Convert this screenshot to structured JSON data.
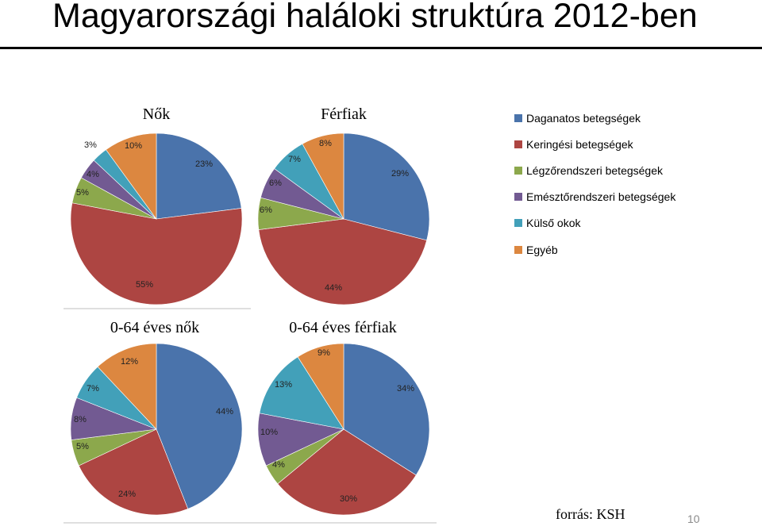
{
  "slide": {
    "title": "Magyarországi haláloki struktúra 2012-ben",
    "source": "forrás: KSH",
    "page_number": "10"
  },
  "legend": [
    {
      "label": "Daganatos betegségek",
      "color": "#4a73ab"
    },
    {
      "label": "Keringési betegségek",
      "color": "#ad4542"
    },
    {
      "label": "Légzőrendszeri betegségek",
      "color": "#8ca84c"
    },
    {
      "label": "Emésztőrendszeri betegségek",
      "color": "#725a92"
    },
    {
      "label": "Külső okok",
      "color": "#42a0b9"
    },
    {
      "label": "Egyéb",
      "color": "#dc8740"
    }
  ],
  "chart_data": [
    {
      "type": "pie",
      "title": "Nők",
      "categories": [
        "Daganatos betegségek",
        "Keringési betegségek",
        "Légzőrendszeri betegségek",
        "Emésztőrendszeri betegségek",
        "Külső okok",
        "Egyéb"
      ],
      "values": [
        23,
        55,
        5,
        4,
        3,
        10
      ],
      "labels": [
        "23%",
        "55%",
        "5%",
        "4%",
        "3%",
        "10%"
      ]
    },
    {
      "type": "pie",
      "title": "Férfiak",
      "categories": [
        "Daganatos betegségek",
        "Keringési betegségek",
        "Légzőrendszeri betegségek",
        "Emésztőrendszeri betegségek",
        "Külső okok",
        "Egyéb"
      ],
      "values": [
        29,
        44,
        6,
        6,
        7,
        8
      ],
      "labels": [
        "29%",
        "44%",
        "6%",
        "6%",
        "7%",
        "8%"
      ]
    },
    {
      "type": "pie",
      "title": "0-64 éves nők",
      "categories": [
        "Daganatos betegségek",
        "Keringési betegségek",
        "Légzőrendszeri betegségek",
        "Emésztőrendszeri betegségek",
        "Külső okok",
        "Egyéb"
      ],
      "values": [
        44,
        24,
        5,
        8,
        7,
        12
      ],
      "labels": [
        "44%",
        "24%",
        "5%",
        "8%",
        "7%",
        "12%"
      ]
    },
    {
      "type": "pie",
      "title": "0-64 éves férfiak",
      "categories": [
        "Daganatos betegségek",
        "Keringési betegségek",
        "Légzőrendszeri betegségek",
        "Emésztőrendszeri betegségek",
        "Külső okok",
        "Egyéb"
      ],
      "values": [
        34,
        30,
        4,
        10,
        13,
        9
      ],
      "labels": [
        "34%",
        "30%",
        "4%",
        "10%",
        "13%",
        "9%"
      ]
    }
  ]
}
